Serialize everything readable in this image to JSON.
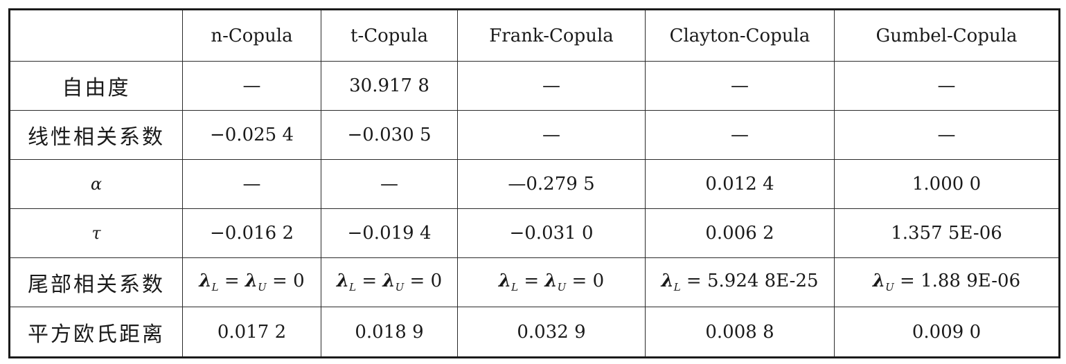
{
  "table": {
    "header": [
      "",
      "n-Copula",
      "t-Copula",
      "Frank-Copula",
      "Clayton-Copula",
      "Gumbel-Copula"
    ],
    "rows": [
      {
        "label": "自由度",
        "cells": [
          "—",
          "30.917 8",
          "—",
          "—",
          "—"
        ]
      },
      {
        "label": "线性相关系数",
        "cells": [
          "−0.025 4",
          "−0.030 5",
          "—",
          "—",
          "—"
        ]
      },
      {
        "label": "α",
        "cells": [
          "—",
          "—",
          "—0.279 5",
          "0.012 4",
          "1.000 0"
        ]
      },
      {
        "label": "τ",
        "cells": [
          "−0.016 2",
          "−0.019 4",
          "−0.031 0",
          "0.006 2",
          "1.357 5E-06"
        ]
      },
      {
        "label": "尾部相关系数",
        "cells": [
          "=λ=0",
          "=λ=0",
          "=λ=0",
          "=5.924 8E-25",
          "=1.88 9E-06"
        ]
      },
      {
        "label": "平方欧氏距离",
        "cells": [
          "0.017 2",
          "0.018 9",
          "0.032 9",
          "0.008 8",
          "0.009 0"
        ]
      }
    ]
  }
}
